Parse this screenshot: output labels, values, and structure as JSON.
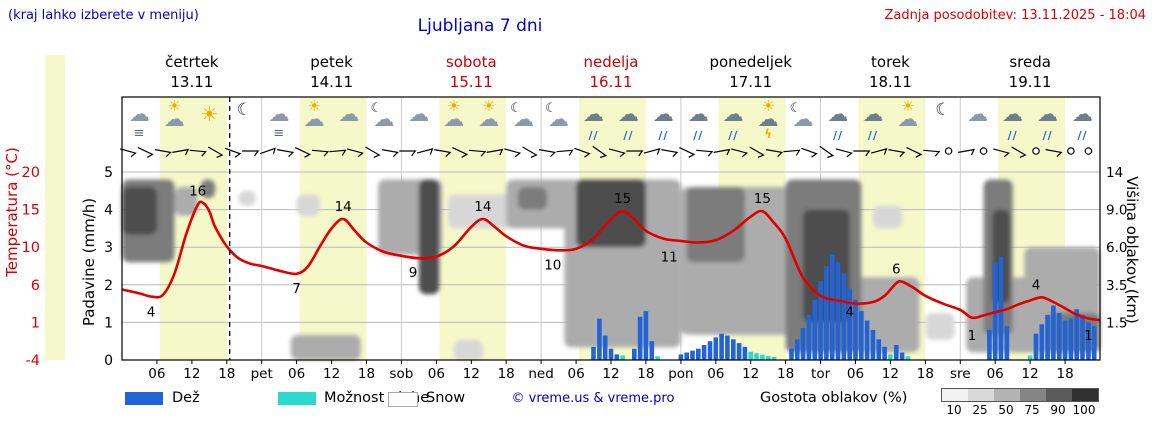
{
  "header": {
    "hint": "(kraj lahko izberete v meniju)",
    "title": "Ljubljana 7 dni",
    "updated": "Zadnja posodobitev: 13.11.2025 - 18:04"
  },
  "axis_labels": {
    "temperature": "Temperatura (°C)",
    "precip": "Padavine (mm/h)",
    "cloud_height": "Višina oblakov (km)"
  },
  "days": [
    {
      "name": "četrtek",
      "date": "13.11",
      "color": "#000000"
    },
    {
      "name": "petek",
      "date": "14.11",
      "color": "#000000"
    },
    {
      "name": "sobota",
      "date": "15.11",
      "color": "#cc0000"
    },
    {
      "name": "nedelja",
      "date": "16.11",
      "color": "#cc0000"
    },
    {
      "name": "ponedeljek",
      "date": "17.11",
      "color": "#000000"
    },
    {
      "name": "torek",
      "date": "18.11",
      "color": "#000000"
    },
    {
      "name": "sreda",
      "date": "19.11",
      "color": "#000000"
    }
  ],
  "legend": {
    "rain": "Dež",
    "shower": "Možnost plohe",
    "snow": "Snow",
    "copyright": "© vreme.us & vreme.pro",
    "cloud_density": "Gostota oblakov (%)",
    "density_ticks": [
      "10",
      "25",
      "50",
      "75",
      "90",
      "100"
    ]
  },
  "colors": {
    "rain": "#2263d6",
    "shower": "#2bd9cf",
    "temp_line": "#e00000",
    "stripe": "#f5f9c9",
    "blue_text": "#0000cc",
    "red_text": "#dd0000"
  },
  "chart_data": {
    "type": "area",
    "title": "Ljubljana 7 dni",
    "x_unit": "hours from 13.11 00:00",
    "x_range": [
      0,
      168
    ],
    "now_hour": 18.5,
    "temp_axis": {
      "ticks": [
        20,
        15,
        10,
        6,
        1,
        -4
      ],
      "range": [
        -4,
        20
      ]
    },
    "precip_axis": {
      "ticks": [
        5,
        4,
        3,
        2,
        1,
        0
      ],
      "range": [
        0,
        5
      ]
    },
    "height_axis": {
      "ticks": [
        "14",
        "9.0",
        "6.0",
        "3.5",
        "1.5"
      ],
      "km_anchors": [
        0,
        1.5,
        3.5,
        6,
        9,
        14
      ]
    },
    "x_tick_hours": [
      6,
      12,
      18,
      24,
      30,
      36,
      42,
      48,
      54,
      60,
      66,
      72,
      78,
      84,
      90,
      96,
      102,
      108,
      114,
      120,
      126,
      132,
      138,
      144,
      150,
      156,
      162
    ],
    "x_tick_labels": [
      "06",
      "12",
      "18",
      "pet",
      "06",
      "12",
      "18",
      "sob",
      "06",
      "12",
      "18",
      "ned",
      "06",
      "12",
      "18",
      "pon",
      "06",
      "12",
      "18",
      "tor",
      "06",
      "12",
      "18",
      "sre",
      "06",
      "12",
      "18"
    ],
    "temperature": {
      "points": [
        [
          0,
          5
        ],
        [
          3,
          4.5
        ],
        [
          5,
          4.1
        ],
        [
          7,
          4.3
        ],
        [
          9,
          7
        ],
        [
          11,
          12
        ],
        [
          13,
          15.8
        ],
        [
          14,
          16
        ],
        [
          15,
          15
        ],
        [
          16,
          13
        ],
        [
          18,
          10.5
        ],
        [
          20,
          9
        ],
        [
          22,
          8.3
        ],
        [
          24,
          8
        ],
        [
          27,
          7.4
        ],
        [
          30,
          7
        ],
        [
          32,
          8
        ],
        [
          34,
          10.5
        ],
        [
          36,
          12.8
        ],
        [
          38,
          14
        ],
        [
          40,
          12.5
        ],
        [
          42,
          11
        ],
        [
          45,
          9.8
        ],
        [
          48,
          9.3
        ],
        [
          51,
          9
        ],
        [
          54,
          9.2
        ],
        [
          57,
          10.5
        ],
        [
          60,
          13
        ],
        [
          62,
          14
        ],
        [
          64,
          13
        ],
        [
          66,
          11.8
        ],
        [
          69,
          10.6
        ],
        [
          72,
          10.2
        ],
        [
          75,
          10
        ],
        [
          78,
          10.2
        ],
        [
          81,
          11.5
        ],
        [
          84,
          14
        ],
        [
          86,
          15
        ],
        [
          88,
          14
        ],
        [
          90,
          12.5
        ],
        [
          93,
          11.5
        ],
        [
          96,
          11.2
        ],
        [
          99,
          11
        ],
        [
          102,
          11.3
        ],
        [
          105,
          12.5
        ],
        [
          108,
          14.3
        ],
        [
          110,
          15
        ],
        [
          112,
          13.5
        ],
        [
          114,
          11.5
        ],
        [
          117,
          6.5
        ],
        [
          120,
          4.2
        ],
        [
          123,
          3.6
        ],
        [
          126,
          3.2
        ],
        [
          129,
          3.4
        ],
        [
          131,
          4.2
        ],
        [
          133,
          5.8
        ],
        [
          134,
          6
        ],
        [
          136,
          5.2
        ],
        [
          138,
          4.2
        ],
        [
          141,
          3.2
        ],
        [
          144,
          2.4
        ],
        [
          146,
          1.4
        ],
        [
          148,
          1.7
        ],
        [
          150,
          2.1
        ],
        [
          152,
          2.5
        ],
        [
          154,
          3.1
        ],
        [
          156,
          3.6
        ],
        [
          158,
          4
        ],
        [
          160,
          3.4
        ],
        [
          162,
          2.6
        ],
        [
          164,
          1.8
        ],
        [
          166,
          1.3
        ],
        [
          168,
          1.1
        ]
      ],
      "labels": [
        [
          13,
          16,
          -1
        ],
        [
          5,
          4,
          1
        ],
        [
          30,
          7,
          1
        ],
        [
          38,
          14,
          -1
        ],
        [
          50,
          9,
          1
        ],
        [
          62,
          14,
          -1
        ],
        [
          74,
          10,
          1
        ],
        [
          86,
          15,
          -1
        ],
        [
          94,
          11,
          1
        ],
        [
          110,
          15,
          -1
        ],
        [
          125,
          4,
          1
        ],
        [
          133,
          6,
          -1
        ],
        [
          146,
          1,
          1
        ],
        [
          157,
          4,
          -1
        ],
        [
          166,
          1,
          1
        ]
      ]
    },
    "rain": [
      [
        81,
        0.35
      ],
      [
        82,
        1.1
      ],
      [
        83,
        0.65
      ],
      [
        84,
        0.3
      ],
      [
        85,
        0.15
      ],
      [
        88,
        0.3
      ],
      [
        89,
        1.15
      ],
      [
        90,
        1.3
      ],
      [
        91,
        0.5
      ],
      [
        96,
        0.15
      ],
      [
        97,
        0.2
      ],
      [
        98,
        0.25
      ],
      [
        99,
        0.3
      ],
      [
        100,
        0.4
      ],
      [
        101,
        0.5
      ],
      [
        102,
        0.6
      ],
      [
        103,
        0.7
      ],
      [
        104,
        0.65
      ],
      [
        105,
        0.55
      ],
      [
        106,
        0.45
      ],
      [
        107,
        0.35
      ],
      [
        115,
        0.3
      ],
      [
        116,
        0.55
      ],
      [
        117,
        0.85
      ],
      [
        118,
        1.2
      ],
      [
        119,
        1.6
      ],
      [
        120,
        2.1
      ],
      [
        121,
        2.5
      ],
      [
        122,
        2.8
      ],
      [
        123,
        2.6
      ],
      [
        124,
        2.3
      ],
      [
        125,
        1.9
      ],
      [
        126,
        1.6
      ],
      [
        127,
        1.3
      ],
      [
        128,
        1.05
      ],
      [
        129,
        0.8
      ],
      [
        130,
        0.55
      ],
      [
        131,
        0.35
      ],
      [
        133,
        0.4
      ],
      [
        134,
        0.2
      ],
      [
        149,
        0.8
      ],
      [
        150,
        2.6
      ],
      [
        151,
        2.75
      ],
      [
        152,
        0.9
      ],
      [
        157,
        0.7
      ],
      [
        158,
        0.95
      ],
      [
        159,
        1.2
      ],
      [
        160,
        1.45
      ],
      [
        161,
        1.25
      ],
      [
        162,
        1.05
      ],
      [
        163,
        1.1
      ],
      [
        164,
        1.35
      ],
      [
        165,
        1.2
      ],
      [
        166,
        1.0
      ],
      [
        167,
        0.9
      ]
    ],
    "showers": [
      [
        86,
        0.12
      ],
      [
        92,
        0.1
      ],
      [
        108,
        0.22
      ],
      [
        109,
        0.18
      ],
      [
        110,
        0.14
      ],
      [
        111,
        0.1
      ],
      [
        112,
        0.08
      ],
      [
        132,
        0.15
      ],
      [
        135,
        0.1
      ],
      [
        156,
        0.12
      ]
    ],
    "clouds": [
      [
        0,
        9,
        5,
        13,
        75
      ],
      [
        0,
        6,
        7,
        12,
        90
      ],
      [
        9,
        13,
        8.5,
        12,
        50
      ],
      [
        13.5,
        16,
        10.5,
        13,
        75
      ],
      [
        20,
        23,
        9.5,
        11.5,
        25
      ],
      [
        29,
        41,
        0,
        1,
        50
      ],
      [
        30,
        34,
        8.5,
        11,
        25
      ],
      [
        44,
        55,
        5.5,
        13,
        50
      ],
      [
        51,
        54.5,
        3,
        13,
        90
      ],
      [
        56,
        68,
        7.5,
        11,
        25
      ],
      [
        57,
        62,
        0,
        0.8,
        25
      ],
      [
        66,
        79,
        7.5,
        13,
        50
      ],
      [
        68,
        73,
        9,
        12,
        75
      ],
      [
        76,
        96,
        0.5,
        13,
        50
      ],
      [
        78,
        90,
        6,
        13,
        90
      ],
      [
        80,
        95,
        1,
        4.5,
        50
      ],
      [
        96,
        119,
        1,
        12,
        50
      ],
      [
        97,
        107,
        5,
        12,
        75
      ],
      [
        114,
        127,
        0.3,
        13,
        75
      ],
      [
        117,
        125,
        1.5,
        9,
        90
      ],
      [
        126,
        137,
        0.3,
        4,
        50
      ],
      [
        129,
        134,
        7.5,
        9.5,
        25
      ],
      [
        138,
        143,
        0.8,
        2,
        25
      ],
      [
        145,
        168,
        0.3,
        4,
        50
      ],
      [
        148,
        153,
        1,
        13,
        75
      ],
      [
        149.5,
        152.5,
        2.5,
        9,
        90
      ],
      [
        155,
        168,
        0.8,
        6,
        50
      ],
      [
        159,
        168,
        0.3,
        2,
        75
      ]
    ],
    "cloud_density_colors": {
      "10": "#ededed",
      "25": "#d7d7d7",
      "50": "#acacac",
      "75": "#7b7b7b",
      "90": "#4e4e4e",
      "100": "#2a2a2a"
    },
    "wind": [
      [
        1,
        15
      ],
      [
        4,
        25
      ],
      [
        7,
        10
      ],
      [
        10,
        -10
      ],
      [
        13,
        5
      ],
      [
        16,
        30
      ],
      [
        19,
        20
      ],
      [
        22,
        0
      ],
      [
        25,
        -20
      ],
      [
        28,
        10
      ],
      [
        31,
        25
      ],
      [
        34,
        5
      ],
      [
        37,
        -5
      ],
      [
        40,
        15
      ],
      [
        43,
        30
      ],
      [
        46,
        10
      ],
      [
        49,
        0
      ],
      [
        52,
        -15
      ],
      [
        55,
        10
      ],
      [
        58,
        25
      ],
      [
        61,
        5
      ],
      [
        64,
        -10
      ],
      [
        67,
        15
      ],
      [
        70,
        30
      ],
      [
        73,
        10
      ],
      [
        76,
        -5
      ],
      [
        79,
        20
      ],
      [
        82,
        35
      ],
      [
        85,
        15
      ],
      [
        88,
        0
      ],
      [
        91,
        -15
      ],
      [
        94,
        10
      ],
      [
        97,
        25
      ],
      [
        100,
        5
      ],
      [
        103,
        -10
      ],
      [
        106,
        15
      ],
      [
        109,
        30
      ],
      [
        112,
        10
      ],
      [
        115,
        -5
      ],
      [
        118,
        20
      ],
      [
        121,
        35
      ],
      [
        124,
        15
      ],
      [
        127,
        0
      ],
      [
        130,
        -15
      ],
      [
        133,
        10
      ],
      [
        136,
        25
      ],
      [
        139,
        5
      ],
      [
        142,
        null
      ],
      [
        145,
        -10
      ],
      [
        148,
        null
      ],
      [
        151,
        15
      ],
      [
        154,
        30
      ],
      [
        157,
        null
      ],
      [
        160,
        10
      ],
      [
        163,
        null
      ],
      [
        166,
        null
      ]
    ],
    "icons": [
      [
        3,
        "fog"
      ],
      [
        9,
        "partly"
      ],
      [
        15,
        "sun"
      ],
      [
        21,
        "moon"
      ],
      [
        27,
        "fog"
      ],
      [
        33,
        "partly"
      ],
      [
        39,
        "cloud"
      ],
      [
        45,
        "moon-cloud"
      ],
      [
        51,
        "cloud"
      ],
      [
        57,
        "partly"
      ],
      [
        63,
        "partly"
      ],
      [
        69,
        "moon-cloud"
      ],
      [
        75,
        "moon-cloud"
      ],
      [
        81,
        "rain"
      ],
      [
        87,
        "rain"
      ],
      [
        93,
        "rain"
      ],
      [
        99,
        "rain"
      ],
      [
        105,
        "rain"
      ],
      [
        111,
        "storm"
      ],
      [
        117,
        "moon-cloud"
      ],
      [
        123,
        "rain"
      ],
      [
        129,
        "rain"
      ],
      [
        135,
        "partly"
      ],
      [
        141,
        "moon"
      ],
      [
        147,
        "cloud"
      ],
      [
        153,
        "rain"
      ],
      [
        159,
        "rain"
      ],
      [
        165,
        "rain"
      ]
    ]
  }
}
